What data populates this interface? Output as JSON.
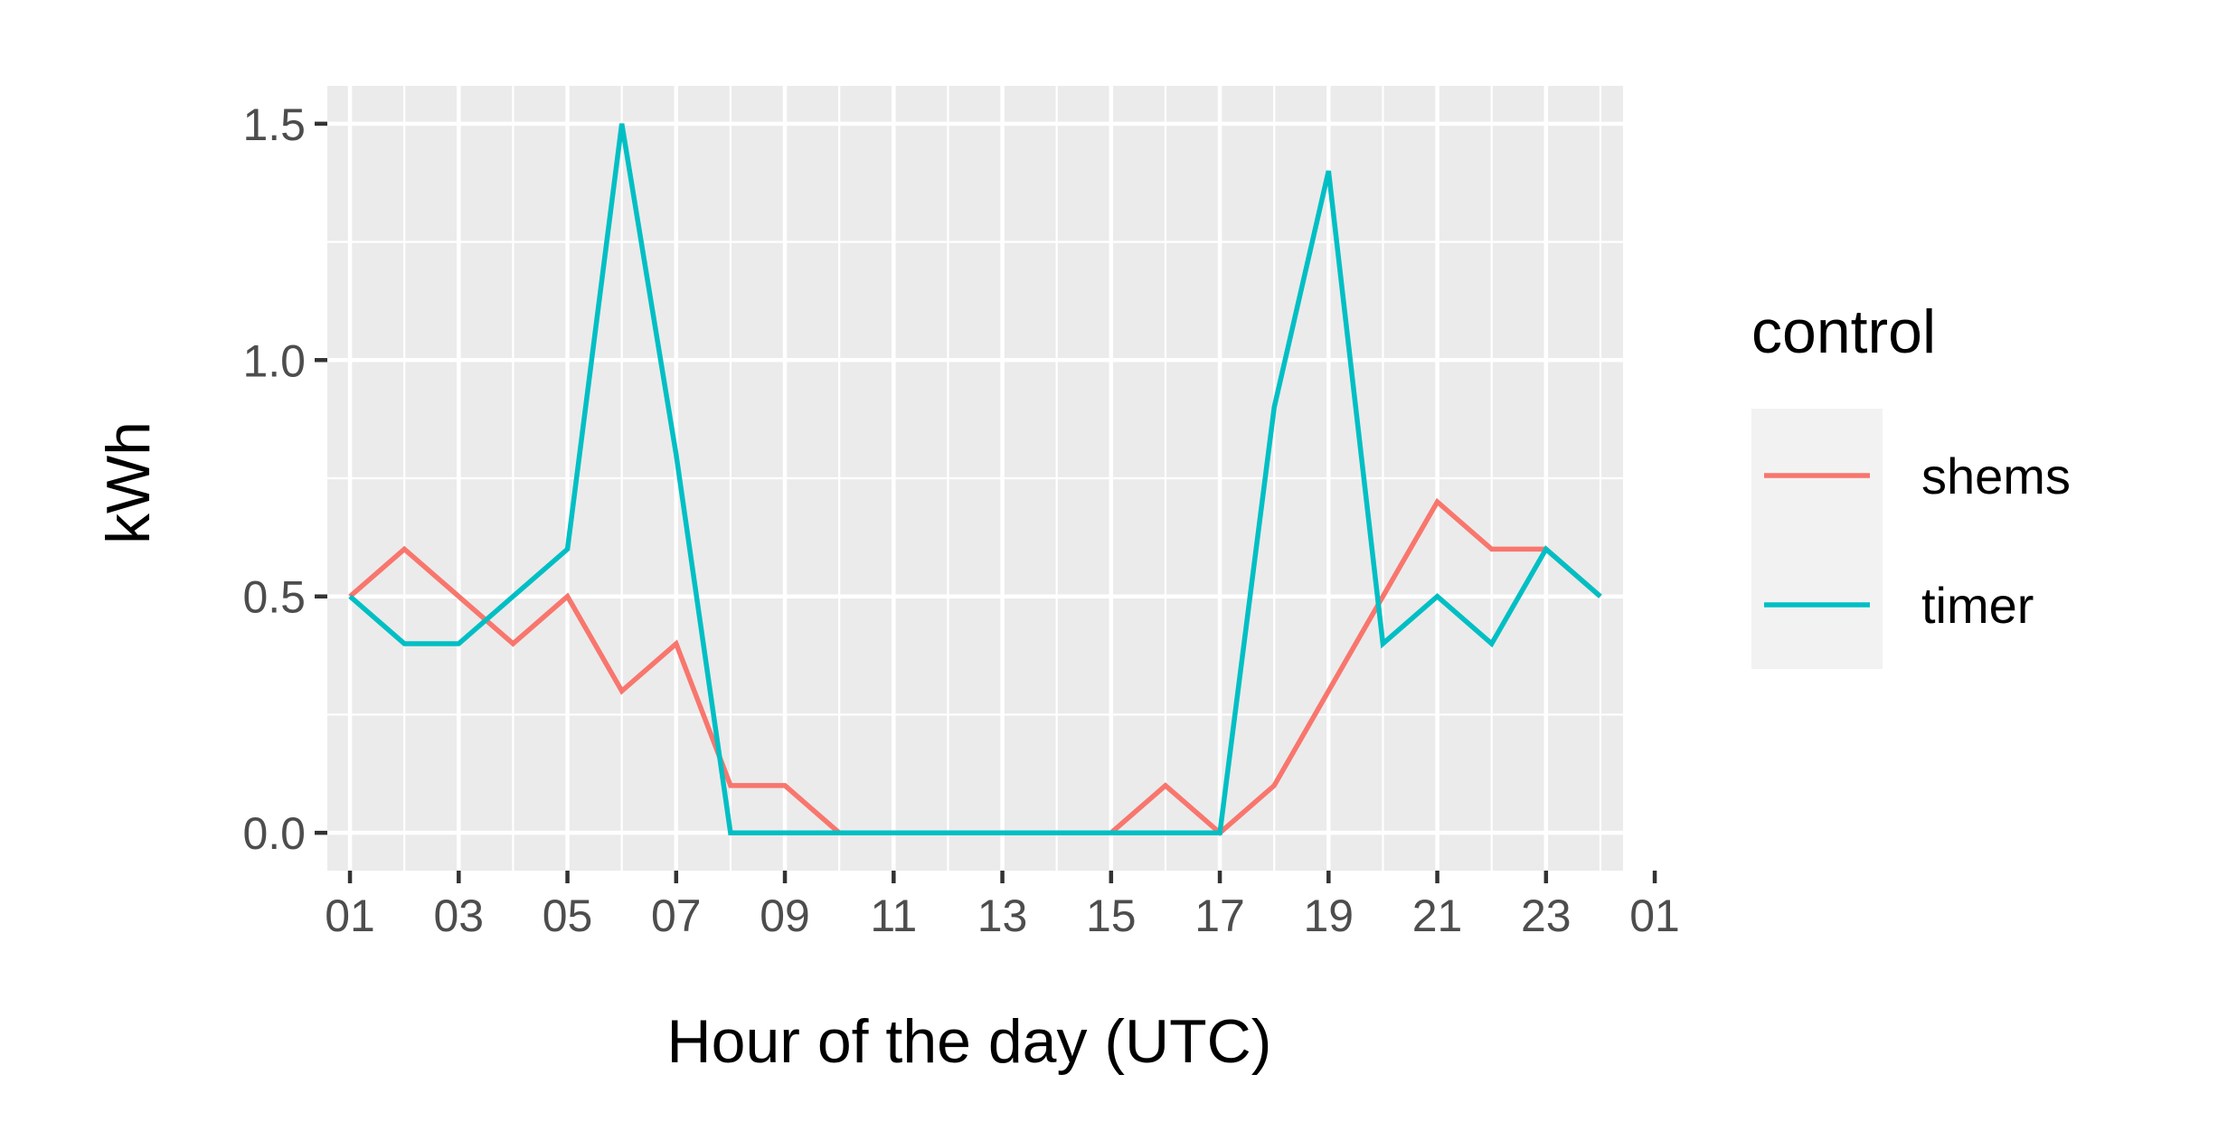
{
  "chart_data": {
    "type": "line",
    "xlabel": "Hour of the day (UTC)",
    "ylabel": "kWh",
    "x_tick_labels": [
      "01",
      "03",
      "05",
      "07",
      "09",
      "11",
      "13",
      "15",
      "17",
      "19",
      "21",
      "23",
      "01"
    ],
    "y_tick_labels": [
      "0.0",
      "0.5",
      "1.0",
      "1.5"
    ],
    "y_ticks": [
      0,
      0.5,
      1.0,
      1.5
    ],
    "ylim": [
      -0.08,
      1.58
    ],
    "xlim": [
      "00:35",
      "24:25"
    ],
    "grid": true,
    "legend": {
      "title": "control",
      "position": "right",
      "entries": [
        "shems",
        "timer"
      ]
    },
    "x": [
      "01",
      "02",
      "03",
      "04",
      "05",
      "06",
      "07",
      "08",
      "09",
      "10",
      "11",
      "12",
      "13",
      "14",
      "15",
      "16",
      "17",
      "18",
      "19",
      "20",
      "21",
      "22",
      "23",
      "24"
    ],
    "series": [
      {
        "name": "shems",
        "color": "#F8766D",
        "values": [
          0.5,
          0.6,
          0.5,
          0.4,
          0.5,
          0.3,
          0.4,
          0.1,
          0.1,
          0.0,
          0.0,
          0.0,
          0.0,
          0.0,
          0.0,
          0.1,
          0.0,
          0.1,
          0.3,
          0.5,
          0.7,
          0.6,
          0.6,
          0.5
        ]
      },
      {
        "name": "timer",
        "color": "#00BFC4",
        "values": [
          0.5,
          0.4,
          0.4,
          0.5,
          0.6,
          1.5,
          0.8,
          0.0,
          0.0,
          0.0,
          0.0,
          0.0,
          0.0,
          0.0,
          0.0,
          0.0,
          0.0,
          0.9,
          1.4,
          0.4,
          0.5,
          0.4,
          0.6,
          0.5
        ]
      }
    ]
  }
}
